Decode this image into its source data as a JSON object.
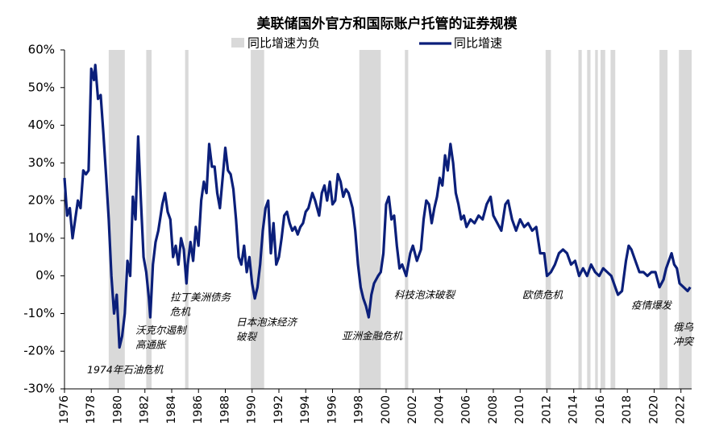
{
  "chart_data": {
    "type": "line",
    "title": "美联储国外官方和国际账户托管的证券规模",
    "xlim": [
      1976,
      2022.8
    ],
    "ylim": [
      -30,
      60
    ],
    "xticks": [
      1976,
      1978,
      1980,
      1982,
      1984,
      1986,
      1988,
      1990,
      1992,
      1994,
      1996,
      1998,
      2000,
      2002,
      2004,
      2006,
      2008,
      2010,
      2012,
      2014,
      2016,
      2018,
      2020,
      2022
    ],
    "yticks": [
      {
        "value": -30,
        "label": "-30%"
      },
      {
        "value": -20,
        "label": "-20%"
      },
      {
        "value": -10,
        "label": "-10%"
      },
      {
        "value": 0,
        "label": "0%"
      },
      {
        "value": 10,
        "label": "10%"
      },
      {
        "value": 20,
        "label": "20%"
      },
      {
        "value": 30,
        "label": "30%"
      },
      {
        "value": 40,
        "label": "40%"
      },
      {
        "value": 50,
        "label": "50%"
      },
      {
        "value": 60,
        "label": "60%"
      }
    ],
    "x": [
      1976.0,
      1976.2,
      1976.4,
      1976.6,
      1976.8,
      1977.0,
      1977.2,
      1977.4,
      1977.6,
      1977.8,
      1978.0,
      1978.2,
      1978.3,
      1978.5,
      1978.7,
      1978.9,
      1979.1,
      1979.3,
      1979.5,
      1979.7,
      1979.9,
      1980.1,
      1980.3,
      1980.5,
      1980.7,
      1980.9,
      1981.1,
      1981.3,
      1981.5,
      1981.7,
      1981.9,
      1982.1,
      1982.3,
      1982.4,
      1982.6,
      1982.8,
      1983.0,
      1983.3,
      1983.5,
      1983.7,
      1983.9,
      1984.1,
      1984.3,
      1984.5,
      1984.7,
      1984.9,
      1985.1,
      1985.2,
      1985.4,
      1985.6,
      1985.8,
      1986.0,
      1986.2,
      1986.4,
      1986.6,
      1986.8,
      1987.0,
      1987.2,
      1987.4,
      1987.6,
      1987.8,
      1988.0,
      1988.2,
      1988.4,
      1988.6,
      1988.8,
      1989.0,
      1989.2,
      1989.4,
      1989.6,
      1989.8,
      1990.0,
      1990.2,
      1990.4,
      1990.6,
      1990.8,
      1991.0,
      1991.2,
      1991.4,
      1991.6,
      1991.8,
      1992.0,
      1992.2,
      1992.4,
      1992.6,
      1992.8,
      1993.0,
      1993.2,
      1993.4,
      1993.6,
      1993.8,
      1994.0,
      1994.2,
      1994.5,
      1994.7,
      1995.0,
      1995.2,
      1995.4,
      1995.6,
      1995.8,
      1996.0,
      1996.2,
      1996.4,
      1996.6,
      1996.8,
      1997.0,
      1997.2,
      1997.5,
      1997.7,
      1997.9,
      1998.1,
      1998.3,
      1998.5,
      1998.7,
      1998.9,
      1999.1,
      1999.4,
      1999.6,
      1999.8,
      2000.0,
      2000.2,
      2000.4,
      2000.6,
      2000.8,
      2001.0,
      2001.2,
      2001.5,
      2001.8,
      2002.0,
      2002.3,
      2002.6,
      2002.8,
      2003.0,
      2003.2,
      2003.4,
      2003.6,
      2003.8,
      2004.0,
      2004.2,
      2004.4,
      2004.6,
      2004.8,
      2005.0,
      2005.2,
      2005.4,
      2005.6,
      2005.8,
      2006.0,
      2006.3,
      2006.6,
      2006.9,
      2007.2,
      2007.5,
      2007.8,
      2008.0,
      2008.3,
      2008.6,
      2008.9,
      2009.1,
      2009.4,
      2009.7,
      2010.0,
      2010.3,
      2010.6,
      2010.9,
      2011.2,
      2011.5,
      2011.8,
      2012.0,
      2012.3,
      2012.6,
      2012.9,
      2013.2,
      2013.5,
      2013.8,
      2014.1,
      2014.4,
      2014.7,
      2015.0,
      2015.3,
      2015.6,
      2015.9,
      2016.2,
      2016.5,
      2016.8,
      2017.1,
      2017.3,
      2017.6,
      2017.9,
      2018.1,
      2018.3,
      2018.6,
      2018.9,
      2019.2,
      2019.5,
      2019.8,
      2020.1,
      2020.4,
      2020.7,
      2020.9,
      2021.1,
      2021.3,
      2021.5,
      2021.7,
      2021.9,
      2022.2,
      2022.5,
      2022.7
    ],
    "series": [
      {
        "name": "同比增速为负",
        "color": "#d9d9d9",
        "spans": [
          [
            1979.3,
            1980.5
          ],
          [
            1982.1,
            1982.5
          ],
          [
            1985.0,
            1985.25
          ],
          [
            1989.9,
            1990.9
          ],
          [
            1998.0,
            1999.6
          ],
          [
            2001.4,
            2001.65
          ],
          [
            2011.9,
            2012.3
          ],
          [
            2014.35,
            2014.6
          ],
          [
            2015.0,
            2015.25
          ],
          [
            2015.6,
            2015.8
          ],
          [
            2016.0,
            2016.35
          ],
          [
            2016.75,
            2017.1
          ],
          [
            2020.4,
            2021.0
          ],
          [
            2021.85,
            2022.8
          ]
        ]
      },
      {
        "name": "同比增速",
        "color": "#0b1f7a",
        "values": [
          26,
          16,
          18,
          10,
          15,
          20,
          18,
          28,
          27,
          28,
          55,
          52,
          56,
          47,
          48,
          38,
          27,
          15,
          0,
          -10,
          -5,
          -19,
          -16,
          -10,
          4,
          0,
          21,
          15,
          37,
          20,
          5,
          1,
          -6,
          -11,
          3,
          9,
          12,
          19,
          22,
          17,
          15,
          5,
          8,
          3,
          10,
          7,
          -2,
          3,
          9,
          4,
          13,
          8,
          20,
          25,
          22,
          35,
          29,
          29,
          22,
          18,
          26,
          34,
          28,
          27,
          23,
          15,
          5,
          3,
          8,
          1,
          5,
          -2,
          -6,
          -3,
          3,
          12,
          18,
          20,
          6,
          14,
          3,
          5,
          10,
          16,
          17,
          14,
          12,
          13,
          11,
          13,
          14,
          17,
          18,
          22,
          20,
          16,
          22,
          24,
          20,
          25,
          19,
          20,
          27,
          25,
          21,
          23,
          22,
          18,
          12,
          3,
          -3,
          -6,
          -8,
          -11,
          -5,
          -2,
          0,
          1,
          6,
          19,
          21,
          15,
          16,
          8,
          2,
          3,
          0,
          6,
          8,
          4,
          7,
          15,
          20,
          19,
          14,
          18,
          21,
          26,
          24,
          32,
          28,
          35,
          30,
          22,
          19,
          15,
          16,
          13,
          15,
          14,
          16,
          15,
          19,
          21,
          16,
          14,
          12,
          19,
          20,
          15,
          12,
          15,
          13,
          14,
          12,
          13,
          6,
          6,
          0,
          1,
          3,
          6,
          7,
          6,
          3,
          4,
          0,
          2,
          0,
          3,
          1,
          0,
          2,
          1,
          0,
          -3,
          -5,
          -4,
          4,
          8,
          7,
          4,
          1,
          1,
          0,
          1,
          1,
          -3,
          -1,
          2,
          4,
          6,
          3,
          2,
          -2,
          -3,
          -4,
          -3
        ]
      }
    ],
    "annotations": [
      [
        "1974年石油危机"
      ],
      [
        "沃克尔遏制",
        "高通胀"
      ],
      [
        "拉丁美洲债务",
        "危机"
      ],
      [
        "日本泡沫经济",
        "破裂"
      ],
      [
        "亚洲金融危机"
      ],
      [
        "科技泡沫破裂"
      ],
      [
        "欧债危机"
      ],
      [
        "疫情爆发"
      ],
      [
        "俄乌",
        "冲突"
      ]
    ]
  }
}
